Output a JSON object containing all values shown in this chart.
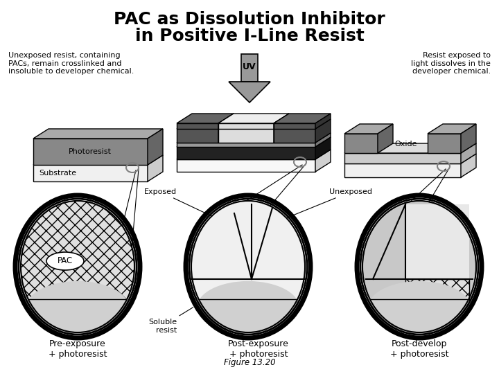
{
  "title_line1": "PAC as Dissolution Inhibitor",
  "title_line2": "in Positive I-Line Resist",
  "annotation_left": "Unexposed resist, containing\nPACs, remain crosslinked and\ninsoluble to developer chemical.",
  "annotation_right": "Resist exposed to\nlight dissolves in the\ndeveloper chemical.",
  "label_uv": "UV",
  "label_exposed": "Exposed",
  "label_unexposed": "Unexposed",
  "label_photoresist": "Photoresist",
  "label_substrate": "Substrate",
  "label_oxide": "Oxide",
  "label_pac": "PAC",
  "label_soluble": "Soluble\nresist",
  "label_pre": "Pre-exposure\n+ photoresist",
  "label_post_exp": "Post-exposure\n+ photoresist",
  "label_post_dev": "Post-develop\n+ photoresist",
  "label_figure": "Figure 13.20"
}
